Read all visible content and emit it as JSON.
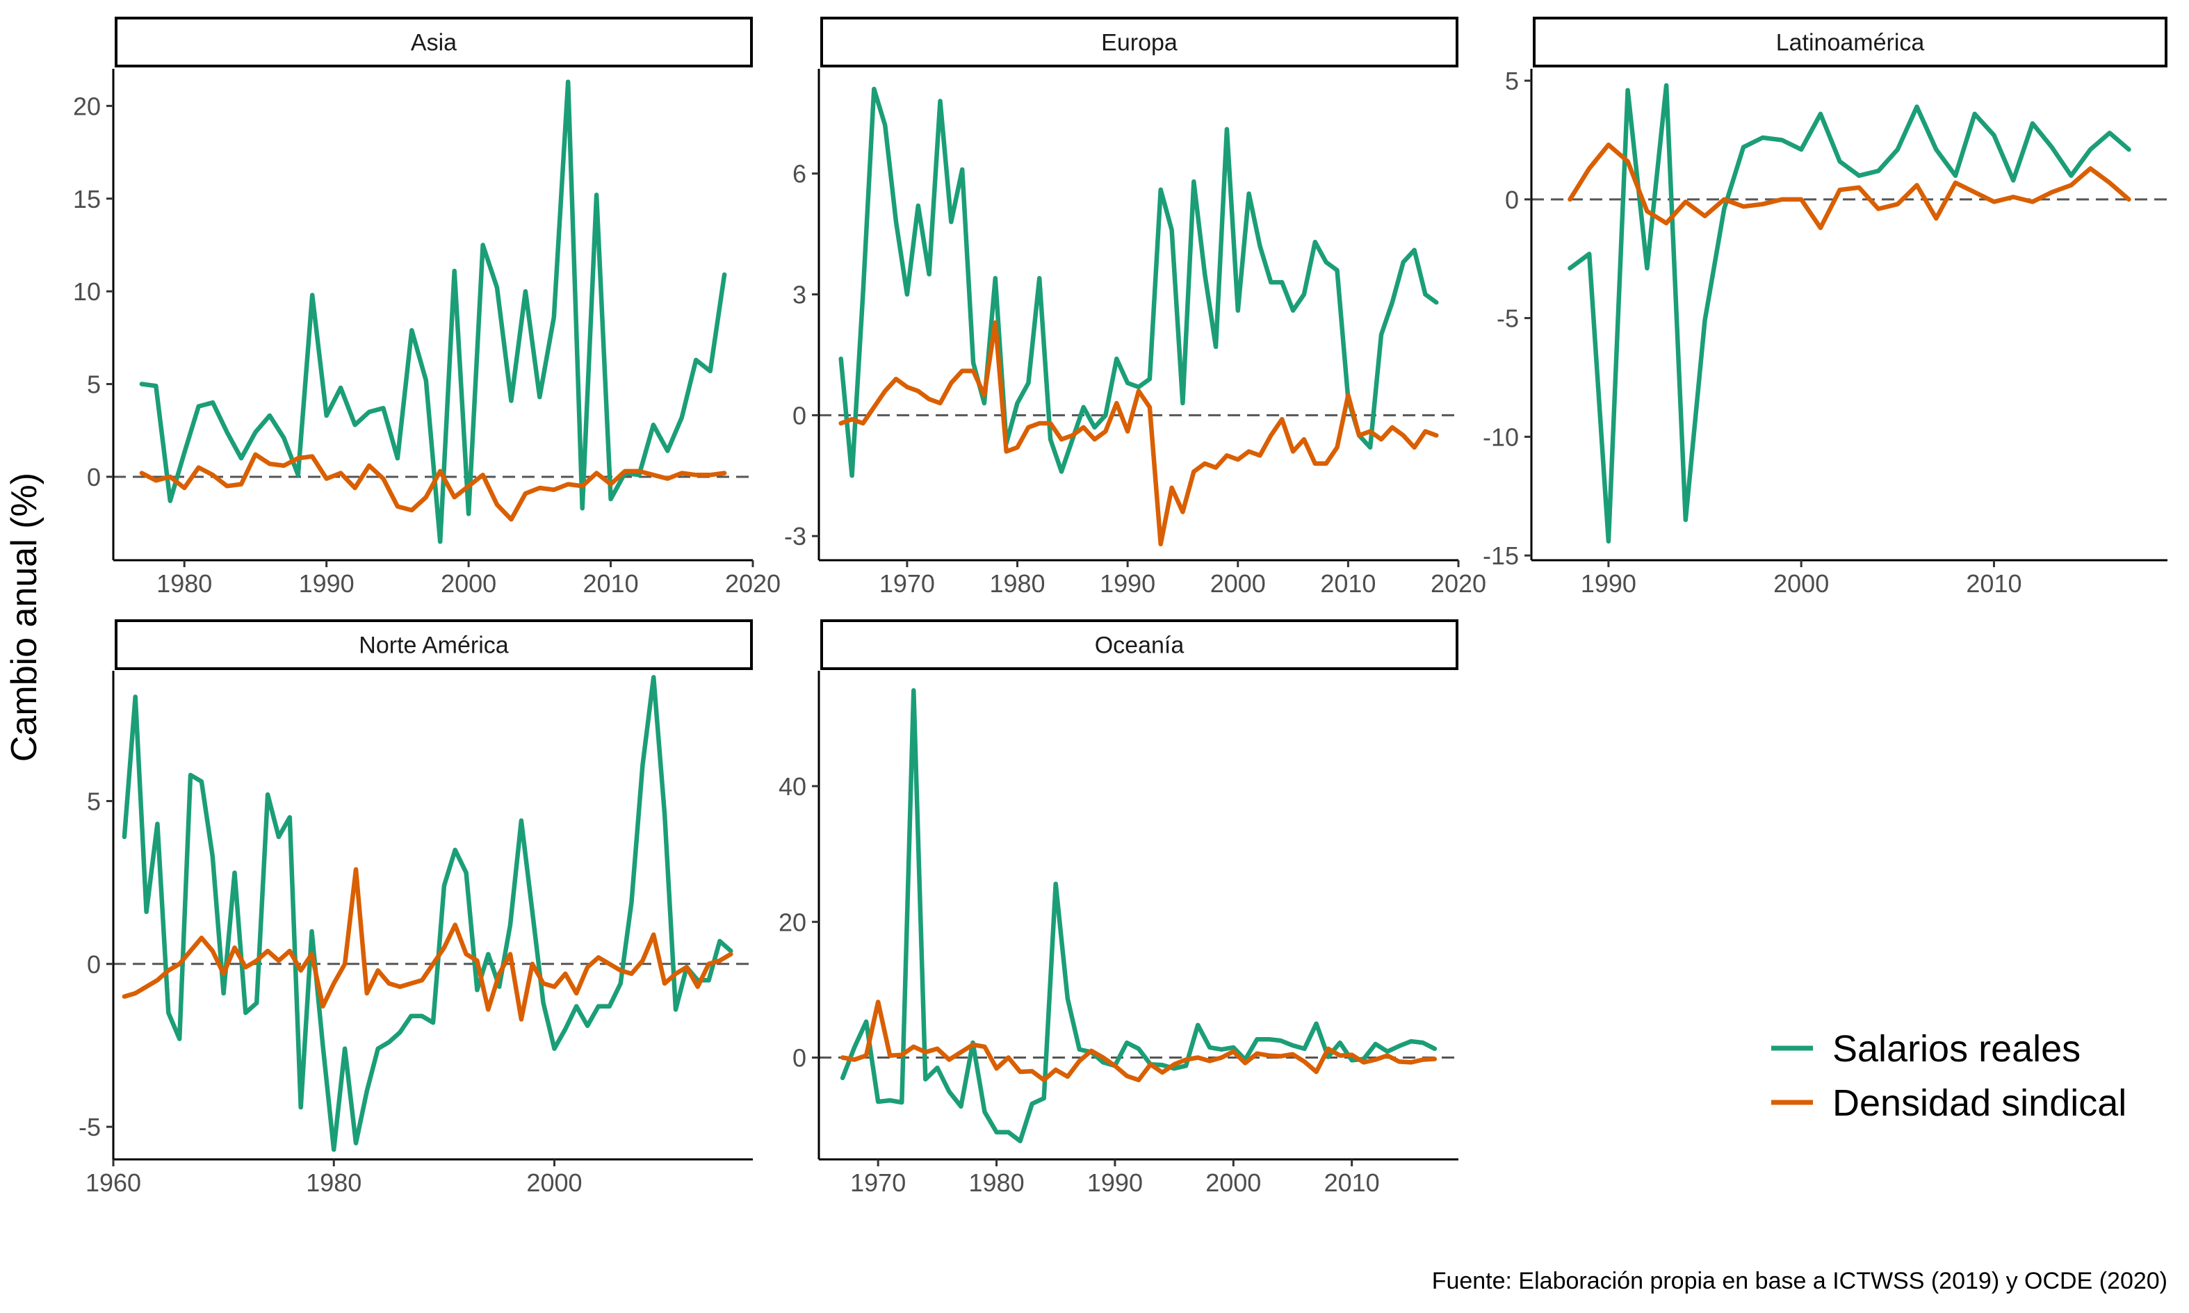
{
  "colors": {
    "wages": "#1b9e77",
    "union": "#d95f02"
  },
  "ylabel": "Cambio anual (%)",
  "caption": "Fuente: Elaboración propia en base a ICTWSS (2019) y OCDE (2020)",
  "legend": [
    "Salarios reales",
    "Densidad sindical"
  ],
  "chart_data": [
    {
      "type": "line",
      "title": "Asia",
      "xlim": [
        1975,
        2020
      ],
      "ylim": [
        -4.5,
        22
      ],
      "xticks": [
        1980,
        1990,
        2000,
        2010,
        2020
      ],
      "yticks": [
        0,
        5,
        10,
        15,
        20
      ],
      "series": [
        {
          "name": "Salarios reales",
          "x": [
            1977,
            1978,
            1979,
            1980,
            1981,
            1982,
            1983,
            1984,
            1985,
            1986,
            1987,
            1988,
            1989,
            1990,
            1991,
            1992,
            1993,
            1994,
            1995,
            1996,
            1997,
            1998,
            1999,
            2000,
            2001,
            2002,
            2003,
            2004,
            2005,
            2006,
            2007,
            2008,
            2009,
            2010,
            2011,
            2012,
            2013,
            2014,
            2015,
            2016,
            2017,
            2018
          ],
          "values": [
            5.0,
            4.9,
            -1.3,
            1.3,
            3.8,
            4.0,
            2.4,
            1.0,
            2.4,
            3.3,
            2.1,
            0.1,
            9.8,
            3.3,
            4.8,
            2.8,
            3.5,
            3.7,
            1.0,
            7.9,
            5.2,
            -3.5,
            11.1,
            -2.0,
            12.5,
            10.2,
            4.1,
            10.0,
            4.3,
            8.6,
            21.3,
            -1.7,
            15.2,
            -1.2,
            0.2,
            0.1,
            2.8,
            1.4,
            3.2,
            6.3,
            5.7,
            10.9
          ]
        },
        {
          "name": "Densidad sindical",
          "x": [
            1977,
            1978,
            1979,
            1980,
            1981,
            1982,
            1983,
            1984,
            1985,
            1986,
            1987,
            1988,
            1989,
            1990,
            1991,
            1992,
            1993,
            1994,
            1995,
            1996,
            1997,
            1998,
            1999,
            2000,
            2001,
            2002,
            2003,
            2004,
            2005,
            2006,
            2007,
            2008,
            2009,
            2010,
            2011,
            2012,
            2013,
            2014,
            2015,
            2016,
            2017,
            2018
          ],
          "values": [
            0.2,
            -0.2,
            0.0,
            -0.6,
            0.5,
            0.1,
            -0.5,
            -0.4,
            1.2,
            0.7,
            0.6,
            1.0,
            1.1,
            -0.1,
            0.2,
            -0.6,
            0.6,
            -0.1,
            -1.6,
            -1.8,
            -1.1,
            0.3,
            -1.1,
            -0.5,
            0.1,
            -1.5,
            -2.3,
            -0.9,
            -0.6,
            -0.7,
            -0.4,
            -0.5,
            0.2,
            -0.4,
            0.3,
            0.3,
            0.1,
            -0.1,
            0.2,
            0.1,
            0.1,
            0.2
          ]
        }
      ]
    },
    {
      "type": "line",
      "title": "Europa",
      "xlim": [
        1962,
        2020
      ],
      "ylim": [
        -3.6,
        8.6
      ],
      "xticks": [
        1970,
        1980,
        1990,
        2000,
        2010,
        2020
      ],
      "yticks": [
        -3,
        0,
        3,
        6
      ],
      "series": [
        {
          "name": "Salarios reales",
          "x": [
            1964,
            1965,
            1966,
            1967,
            1968,
            1969,
            1970,
            1971,
            1972,
            1973,
            1974,
            1975,
            1976,
            1977,
            1978,
            1979,
            1980,
            1981,
            1982,
            1983,
            1984,
            1985,
            1986,
            1987,
            1988,
            1989,
            1990,
            1991,
            1992,
            1993,
            1994,
            1995,
            1996,
            1997,
            1998,
            1999,
            2000,
            2001,
            2002,
            2003,
            2004,
            2005,
            2006,
            2007,
            2008,
            2009,
            2010,
            2011,
            2012,
            2013,
            2014,
            2015,
            2016,
            2017,
            2018
          ],
          "values": [
            1.4,
            -1.5,
            3.0,
            8.1,
            7.2,
            4.8,
            3.0,
            5.2,
            3.5,
            7.8,
            4.8,
            6.1,
            1.3,
            0.3,
            3.4,
            -0.7,
            0.3,
            0.8,
            3.4,
            -0.6,
            -1.4,
            -0.6,
            0.2,
            -0.3,
            0.0,
            1.4,
            0.8,
            0.7,
            0.9,
            5.6,
            4.6,
            0.3,
            5.8,
            3.5,
            1.7,
            7.1,
            2.6,
            5.5,
            4.2,
            3.3,
            3.3,
            2.6,
            3.0,
            4.3,
            3.8,
            3.6,
            0.4,
            -0.5,
            -0.8,
            2.0,
            2.8,
            3.8,
            4.1,
            3.0,
            2.8
          ]
        },
        {
          "name": "Densidad sindical",
          "x": [
            1964,
            1965,
            1966,
            1967,
            1968,
            1969,
            1970,
            1971,
            1972,
            1973,
            1974,
            1975,
            1976,
            1977,
            1978,
            1979,
            1980,
            1981,
            1982,
            1983,
            1984,
            1985,
            1986,
            1987,
            1988,
            1989,
            1990,
            1991,
            1992,
            1993,
            1994,
            1995,
            1996,
            1997,
            1998,
            1999,
            2000,
            2001,
            2002,
            2003,
            2004,
            2005,
            2006,
            2007,
            2008,
            2009,
            2010,
            2011,
            2012,
            2013,
            2014,
            2015,
            2016,
            2017,
            2018
          ],
          "values": [
            -0.2,
            -0.1,
            -0.2,
            0.2,
            0.6,
            0.9,
            0.7,
            0.6,
            0.4,
            0.3,
            0.8,
            1.1,
            1.1,
            0.5,
            2.3,
            -0.9,
            -0.8,
            -0.3,
            -0.2,
            -0.2,
            -0.6,
            -0.5,
            -0.3,
            -0.6,
            -0.4,
            0.3,
            -0.4,
            0.6,
            0.2,
            -3.2,
            -1.8,
            -2.4,
            -1.4,
            -1.2,
            -1.3,
            -1.0,
            -1.1,
            -0.9,
            -1.0,
            -0.5,
            -0.1,
            -0.9,
            -0.6,
            -1.2,
            -1.2,
            -0.8,
            0.5,
            -0.5,
            -0.4,
            -0.6,
            -0.3,
            -0.5,
            -0.8,
            -0.4,
            -0.5
          ]
        }
      ]
    },
    {
      "type": "line",
      "title": "Latinoamérica",
      "xlim": [
        1986,
        2019
      ],
      "ylim": [
        -15.2,
        5.5
      ],
      "xticks": [
        1990,
        2000,
        2010
      ],
      "yticks": [
        -15,
        -10,
        -5,
        0,
        5
      ],
      "series": [
        {
          "name": "Salarios reales",
          "x": [
            1988,
            1989,
            1990,
            1991,
            1992,
            1993,
            1994,
            1995,
            1996,
            1997,
            1998,
            1999,
            2000,
            2001,
            2002,
            2003,
            2004,
            2005,
            2006,
            2007,
            2008,
            2009,
            2010,
            2011,
            2012,
            2013,
            2014,
            2015,
            2016,
            2017
          ],
          "values": [
            -2.9,
            -2.3,
            -14.4,
            4.6,
            -2.9,
            4.8,
            -13.5,
            -5.1,
            -0.4,
            2.2,
            2.6,
            2.5,
            2.1,
            3.6,
            1.6,
            1.0,
            1.2,
            2.1,
            3.9,
            2.1,
            1.0,
            3.6,
            2.7,
            0.8,
            3.2,
            2.2,
            1.0,
            2.1,
            2.8,
            2.1
          ]
        },
        {
          "name": "Densidad sindical",
          "x": [
            1988,
            1989,
            1990,
            1991,
            1992,
            1993,
            1994,
            1995,
            1996,
            1997,
            1998,
            1999,
            2000,
            2001,
            2002,
            2003,
            2004,
            2005,
            2006,
            2007,
            2008,
            2009,
            2010,
            2011,
            2012,
            2013,
            2014,
            2015,
            2016,
            2017
          ],
          "values": [
            0.0,
            1.3,
            2.3,
            1.6,
            -0.5,
            -1.0,
            -0.1,
            -0.7,
            0.0,
            -0.3,
            -0.2,
            0.0,
            0.0,
            -1.2,
            0.4,
            0.5,
            -0.4,
            -0.2,
            0.6,
            -0.8,
            0.7,
            0.3,
            -0.1,
            0.1,
            -0.1,
            0.3,
            0.6,
            1.3,
            0.7,
            0.0
          ]
        }
      ]
    },
    {
      "type": "line",
      "title": "Norte América",
      "xlim": [
        1960,
        2018
      ],
      "ylim": [
        -6.0,
        9.0
      ],
      "xticks": [
        1960,
        1980,
        2000
      ],
      "yticks": [
        -5,
        0,
        5
      ],
      "series": [
        {
          "name": "Salarios reales",
          "x": [
            1961,
            1962,
            1963,
            1964,
            1965,
            1966,
            1967,
            1968,
            1969,
            1970,
            1971,
            1972,
            1973,
            1974,
            1975,
            1976,
            1977,
            1978,
            1979,
            1980,
            1981,
            1982,
            1983,
            1984,
            1985,
            1986,
            1987,
            1988,
            1989,
            1990,
            1991,
            1992,
            1993,
            1994,
            1995,
            1996,
            1997,
            1998,
            1999,
            2000,
            2001,
            2002,
            2003,
            2004,
            2005,
            2006,
            2007,
            2008,
            2009,
            2010,
            2011,
            2012,
            2013,
            2014,
            2015,
            2016
          ],
          "values": [
            3.9,
            8.2,
            1.6,
            4.3,
            -1.5,
            -2.3,
            5.8,
            5.6,
            3.3,
            -0.9,
            2.8,
            -1.5,
            -1.2,
            5.2,
            3.9,
            4.5,
            -4.4,
            1.0,
            -2.5,
            -5.7,
            -2.6,
            -5.5,
            -3.9,
            -2.6,
            -2.4,
            -2.1,
            -1.6,
            -1.6,
            -1.8,
            2.4,
            3.5,
            2.8,
            -0.8,
            0.3,
            -0.7,
            1.2,
            4.4,
            1.6,
            -1.2,
            -2.6,
            -2.0,
            -1.3,
            -1.9,
            -1.3,
            -1.3,
            -0.6,
            1.9,
            6.1,
            8.8,
            4.6,
            -1.4,
            -0.1,
            -0.5,
            -0.5,
            0.7,
            0.4
          ]
        },
        {
          "name": "Densidad sindical",
          "x": [
            1961,
            1962,
            1963,
            1964,
            1965,
            1966,
            1967,
            1968,
            1969,
            1970,
            1971,
            1972,
            1973,
            1974,
            1975,
            1976,
            1977,
            1978,
            1979,
            1980,
            1981,
            1982,
            1983,
            1984,
            1985,
            1986,
            1987,
            1988,
            1989,
            1990,
            1991,
            1992,
            1993,
            1994,
            1995,
            1996,
            1997,
            1998,
            1999,
            2000,
            2001,
            2002,
            2003,
            2004,
            2005,
            2006,
            2007,
            2008,
            2009,
            2010,
            2011,
            2012,
            2013,
            2014,
            2015,
            2016
          ],
          "values": [
            -1.0,
            -0.9,
            -0.7,
            -0.5,
            -0.2,
            0.0,
            0.4,
            0.8,
            0.4,
            -0.3,
            0.5,
            -0.1,
            0.1,
            0.4,
            0.1,
            0.4,
            -0.2,
            0.3,
            -1.3,
            -0.6,
            0.0,
            2.9,
            -0.9,
            -0.2,
            -0.6,
            -0.7,
            -0.6,
            -0.5,
            0.0,
            0.5,
            1.2,
            0.3,
            0.1,
            -1.4,
            -0.3,
            0.3,
            -1.7,
            0.0,
            -0.6,
            -0.7,
            -0.3,
            -0.9,
            -0.1,
            0.2,
            0.0,
            -0.2,
            -0.3,
            0.1,
            0.9,
            -0.6,
            -0.3,
            -0.1,
            -0.7,
            0.0,
            0.1,
            0.3
          ]
        }
      ]
    },
    {
      "type": "line",
      "title": "Oceanía",
      "xlim": [
        1965,
        2019
      ],
      "ylim": [
        -15,
        57
      ],
      "xticks": [
        1970,
        1980,
        1990,
        2000,
        2010
      ],
      "yticks": [
        0,
        20,
        40
      ],
      "series": [
        {
          "name": "Salarios reales",
          "x": [
            1967,
            1968,
            1969,
            1970,
            1971,
            1972,
            1973,
            1974,
            1975,
            1976,
            1977,
            1978,
            1979,
            1980,
            1981,
            1982,
            1983,
            1984,
            1985,
            1986,
            1987,
            1988,
            1989,
            1990,
            1991,
            1992,
            1993,
            1994,
            1995,
            1996,
            1997,
            1998,
            1999,
            2000,
            2001,
            2002,
            2003,
            2004,
            2005,
            2006,
            2007,
            2008,
            2009,
            2010,
            2011,
            2012,
            2013,
            2014,
            2015,
            2016,
            2017
          ],
          "values": [
            -3.0,
            1.5,
            5.3,
            -6.5,
            -6.3,
            -6.6,
            54.1,
            -3.2,
            -1.5,
            -5.0,
            -7.2,
            2.2,
            -8.0,
            -11.0,
            -11.0,
            -12.3,
            -6.8,
            -6.0,
            25.6,
            8.7,
            1.2,
            0.8,
            -0.7,
            -1.2,
            2.2,
            1.3,
            -1.0,
            -1.1,
            -1.6,
            -1.2,
            4.8,
            1.5,
            1.2,
            1.5,
            -0.3,
            2.7,
            2.7,
            2.5,
            1.8,
            1.3,
            5.0,
            0.1,
            2.2,
            -0.4,
            -0.2,
            2.0,
            0.9,
            1.7,
            2.4,
            2.2,
            1.3
          ]
        },
        {
          "name": "Densidad sindical",
          "x": [
            1967,
            1968,
            1969,
            1970,
            1971,
            1972,
            1973,
            1974,
            1975,
            1976,
            1977,
            1978,
            1979,
            1980,
            1981,
            1982,
            1983,
            1984,
            1985,
            1986,
            1987,
            1988,
            1989,
            1990,
            1991,
            1992,
            1993,
            1994,
            1995,
            1996,
            1997,
            1998,
            1999,
            2000,
            2001,
            2002,
            2003,
            2004,
            2005,
            2006,
            2007,
            2008,
            2009,
            2010,
            2011,
            2012,
            2013,
            2014,
            2015,
            2016,
            2017
          ],
          "values": [
            0.0,
            -0.3,
            0.3,
            8.2,
            0.3,
            0.4,
            1.6,
            0.8,
            1.3,
            -0.3,
            0.8,
            1.9,
            1.6,
            -1.6,
            0.0,
            -2.1,
            -2.0,
            -3.3,
            -1.8,
            -2.8,
            -0.5,
            1.0,
            0.0,
            -1.2,
            -2.7,
            -3.3,
            -1.0,
            -2.2,
            -1.0,
            -0.3,
            0.0,
            -0.5,
            0.0,
            0.9,
            -0.8,
            0.6,
            0.3,
            0.2,
            0.5,
            -0.6,
            -2.1,
            1.3,
            0.3,
            0.4,
            -0.7,
            -0.3,
            0.3,
            -0.6,
            -0.7,
            -0.3,
            -0.2
          ]
        }
      ]
    }
  ]
}
